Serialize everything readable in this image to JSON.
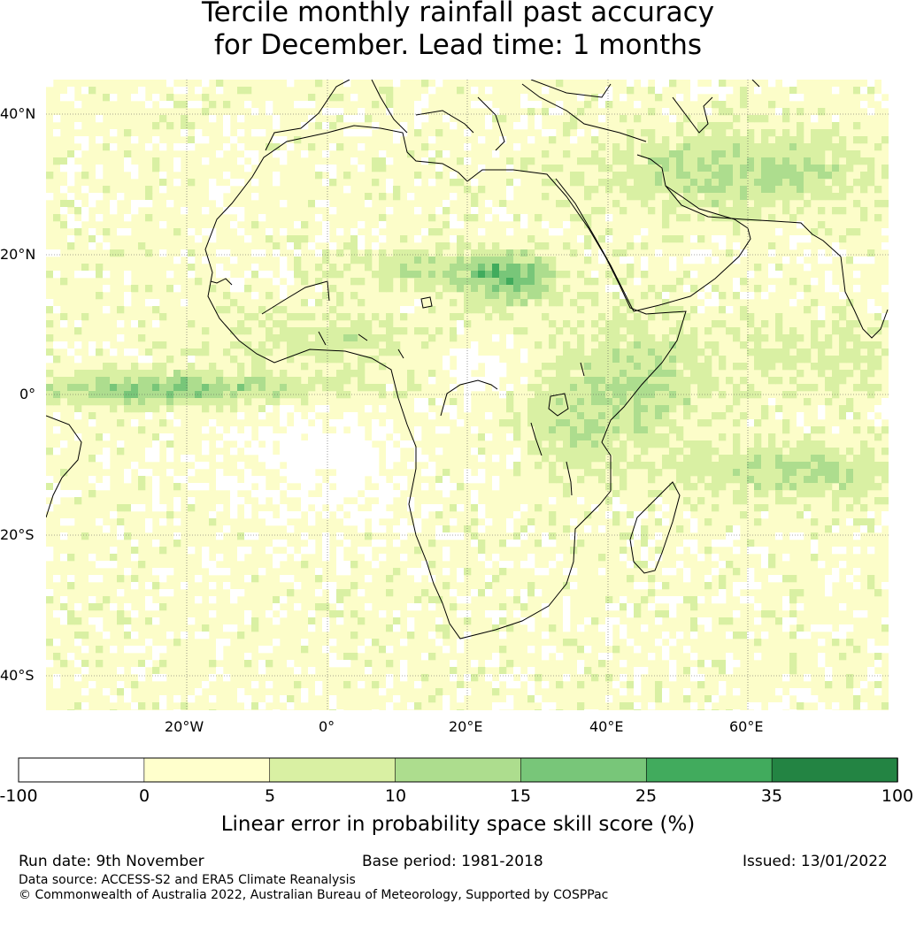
{
  "title": {
    "line1": "Tercile monthly rainfall past accuracy",
    "line2": "for December. Lead time: 1 months"
  },
  "map": {
    "lat_labels": [
      "40°N",
      "20°N",
      "0°",
      "20°S",
      "40°S"
    ],
    "lon_labels": [
      "20°W",
      "0°",
      "20°E",
      "40°E",
      "60°E"
    ],
    "extent": {
      "lon_min": -40,
      "lon_max": 80,
      "lat_min": -45,
      "lat_max": 45
    }
  },
  "colorbar": {
    "ticks": [
      "-100",
      "0",
      "5",
      "10",
      "15",
      "25",
      "35",
      "100"
    ],
    "colors": [
      "#ffffff",
      "#ffffcc",
      "#d9f0a3",
      "#addd8e",
      "#78c679",
      "#41ab5d",
      "#238443"
    ],
    "label": "Linear error in probability space skill score (%)"
  },
  "footer": {
    "run_date": "Run date: 9th November",
    "base_period": "Base period: 1981-2018",
    "issued": "Issued: 13/01/2022",
    "data_source": "Data source: ACCESS-S2 and ERA5 Climate Reanalysis",
    "copyright": "© Commonwealth of Australia 2022, Australian Bureau of Meteorology, Supported by COSPPac"
  }
}
